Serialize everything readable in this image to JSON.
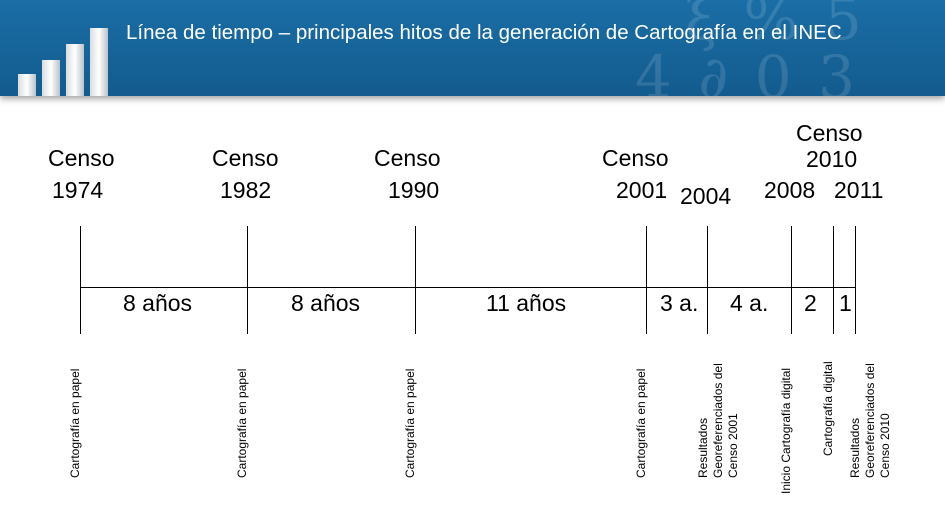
{
  "header": {
    "title": "Línea de tiempo – principales hitos de la generación de Cartografía en el INEC"
  },
  "milestones": [
    {
      "censo": "Censo",
      "year": "1974",
      "desc": [
        "Cartografía en papel"
      ]
    },
    {
      "censo": "Censo",
      "year": "1982",
      "desc": [
        "Cartografía en papel"
      ]
    },
    {
      "censo": "Censo",
      "year": "1990",
      "desc": [
        "Cartografía en papel"
      ]
    },
    {
      "censo": "Censo",
      "year": "2001",
      "desc": [
        "Cartografía en papel"
      ]
    },
    {
      "year": "2004",
      "desc": [
        "Resultados",
        "Georeferenciados del",
        "Censo 2001"
      ]
    },
    {
      "year": "2008",
      "desc": [
        "Inicio Cartografía digital"
      ]
    },
    {
      "censo": "Censo",
      "year": "2010",
      "desc": [
        "Cartografía digital"
      ]
    },
    {
      "year": "2011",
      "desc": [
        "Resultados",
        "Georeferenciados del",
        "Censo 2010"
      ]
    }
  ],
  "intervals": [
    "8 años",
    "8 años",
    "11 años",
    "3 a.",
    "4 a.",
    "2",
    "1"
  ]
}
